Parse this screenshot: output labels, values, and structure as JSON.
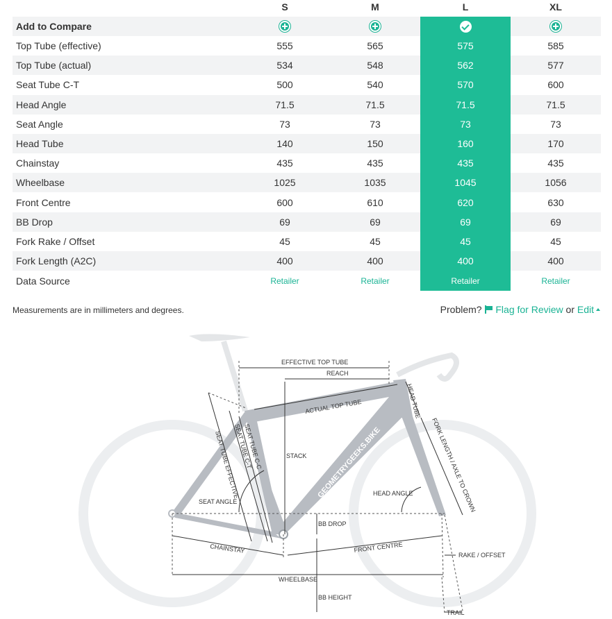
{
  "sizes": [
    "S",
    "M",
    "L",
    "XL"
  ],
  "selected_size": "L",
  "add_to_compare_label": "Add to Compare",
  "compare_icons": [
    "plus-circle-icon",
    "plus-circle-icon",
    "check-circle-icon",
    "plus-circle-icon"
  ],
  "rows": [
    {
      "label": "Top Tube (effective)",
      "values": [
        "555",
        "565",
        "575",
        "585"
      ]
    },
    {
      "label": "Top Tube (actual)",
      "values": [
        "534",
        "548",
        "562",
        "577"
      ]
    },
    {
      "label": "Seat Tube C-T",
      "values": [
        "500",
        "540",
        "570",
        "600"
      ]
    },
    {
      "label": "Head Angle",
      "values": [
        "71.5",
        "71.5",
        "71.5",
        "71.5"
      ]
    },
    {
      "label": "Seat Angle",
      "values": [
        "73",
        "73",
        "73",
        "73"
      ]
    },
    {
      "label": "Head Tube",
      "values": [
        "140",
        "150",
        "160",
        "170"
      ]
    },
    {
      "label": "Chainstay",
      "values": [
        "435",
        "435",
        "435",
        "435"
      ]
    },
    {
      "label": "Wheelbase",
      "values": [
        "1025",
        "1035",
        "1045",
        "1056"
      ]
    },
    {
      "label": "Front Centre",
      "values": [
        "600",
        "610",
        "620",
        "630"
      ]
    },
    {
      "label": "BB Drop",
      "values": [
        "69",
        "69",
        "69",
        "69"
      ]
    },
    {
      "label": "Fork Rake / Offset",
      "values": [
        "45",
        "45",
        "45",
        "45"
      ]
    },
    {
      "label": "Fork Length (A2C)",
      "values": [
        "400",
        "400",
        "400",
        "400"
      ]
    }
  ],
  "data_source": {
    "label": "Data Source",
    "values": [
      "Retailer",
      "Retailer",
      "Retailer",
      "Retailer"
    ]
  },
  "footnote": "Measurements are in millimeters and degrees.",
  "problem": {
    "prefix": "Problem?",
    "flag_label": "Flag for Review",
    "or": "or",
    "edit_label": "Edit"
  },
  "diagram": {
    "brand_text": "GEOMETRYGEEKS.BIKE",
    "labels": {
      "effective_top_tube": "EFFECTIVE TOP TUBE",
      "reach": "REACH",
      "head_tube": "HEAD TUBE",
      "actual_top_tube": "ACTUAL TOP TUBE",
      "fork_length": "FORK LENGTH / AXLE TO CROWN",
      "seat_tube_ct": "SEAT TUBE C-T",
      "seat_tube_cc": "SEAT TUBE C-C",
      "seat_tube_effective": "SEAT TUBE EFFECTIVE",
      "stack": "STACK",
      "seat_angle": "SEAT ANGLE",
      "head_angle": "HEAD ANGLE",
      "bb_drop": "BB DROP",
      "chainstay": "CHAINSTAY",
      "front_centre": "FRONT CENTRE",
      "rake_offset": "RAKE / OFFSET",
      "wheelbase": "WHEELBASE",
      "bb_height": "BB HEIGHT",
      "trail": "TRAIL"
    }
  },
  "colors": {
    "accent": "#1ebc96",
    "link": "#1ab394",
    "row_shade": "#f2f3f4",
    "frame": "#b8bcc2",
    "wheel": "#eceef0"
  }
}
